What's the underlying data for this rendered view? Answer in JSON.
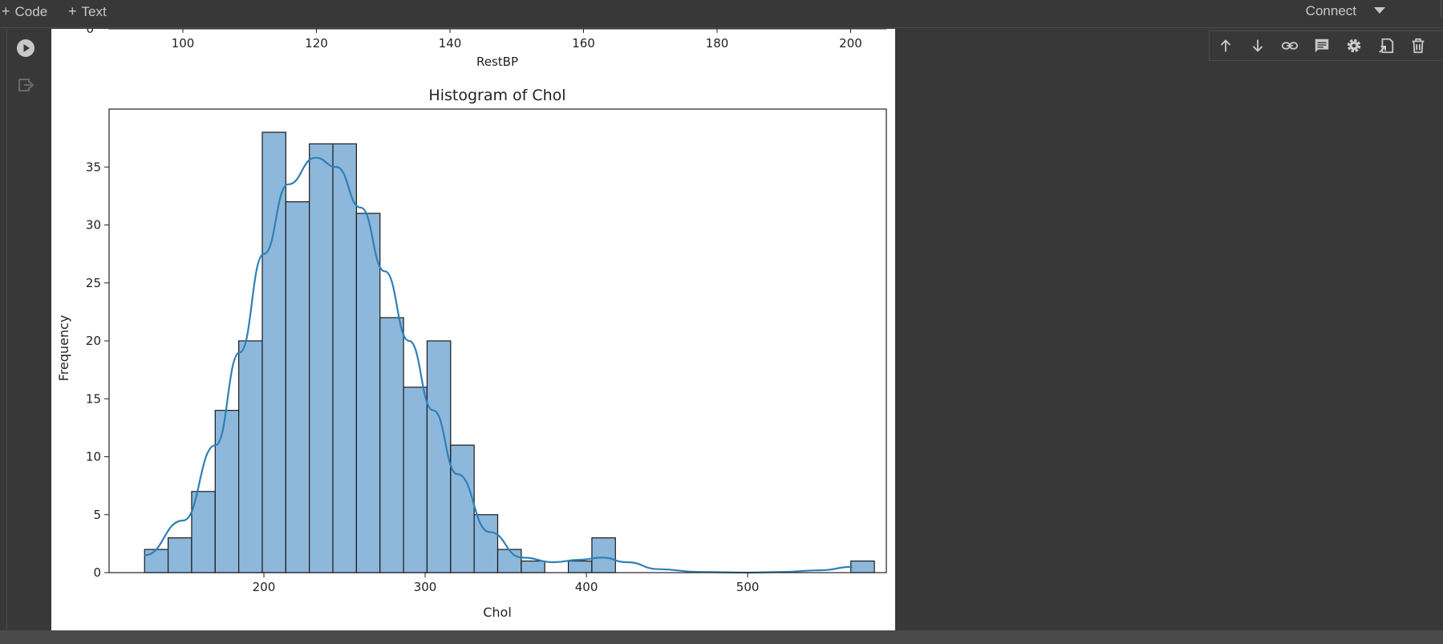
{
  "toolbar": {
    "add_code_label": "Code",
    "add_text_label": "Text",
    "connect_label": "Connect"
  },
  "cell_toolbar": {
    "icons": [
      "arrow-up-icon",
      "arrow-down-icon",
      "link-icon",
      "comment-icon",
      "gear-icon",
      "mirror-cell-icon",
      "delete-icon"
    ]
  },
  "prev_chart": {
    "xlabel": "RestBP",
    "ticks": [
      "100",
      "120",
      "140",
      "160",
      "180",
      "200"
    ],
    "y_zero_label": "0"
  },
  "chart_data": {
    "type": "bar",
    "title": "Histogram of Chol",
    "xlabel": "Chol",
    "ylabel": "Frequency",
    "x_ticks": [
      200,
      300,
      400,
      500
    ],
    "y_ticks": [
      0,
      5,
      10,
      15,
      20,
      25,
      30,
      35
    ],
    "xlim": [
      104,
      586
    ],
    "ylim": [
      0,
      40
    ],
    "bin_width": 14.6,
    "bin_start": 126,
    "values": [
      2,
      3,
      7,
      14,
      20,
      38,
      32,
      37,
      37,
      31,
      22,
      16,
      20,
      11,
      5,
      2,
      1,
      0,
      1,
      3,
      0,
      0,
      0,
      0,
      0,
      0,
      0,
      0,
      0,
      0,
      1
    ],
    "kde": [
      [
        126,
        1.5
      ],
      [
        150,
        4.5
      ],
      [
        170,
        11
      ],
      [
        185,
        19
      ],
      [
        200,
        27.5
      ],
      [
        215,
        33.5
      ],
      [
        232,
        35.8
      ],
      [
        245,
        35
      ],
      [
        260,
        31.5
      ],
      [
        275,
        26
      ],
      [
        290,
        20
      ],
      [
        305,
        14
      ],
      [
        320,
        8.5
      ],
      [
        340,
        3.5
      ],
      [
        360,
        1.3
      ],
      [
        380,
        0.9
      ],
      [
        395,
        1.1
      ],
      [
        410,
        1.3
      ],
      [
        425,
        0.9
      ],
      [
        445,
        0.3
      ],
      [
        470,
        0.05
      ],
      [
        500,
        0
      ],
      [
        520,
        0.05
      ],
      [
        545,
        0.2
      ],
      [
        565,
        0.5
      ]
    ],
    "bar_color": "#8db8db",
    "line_color": "#2f7fb8"
  }
}
